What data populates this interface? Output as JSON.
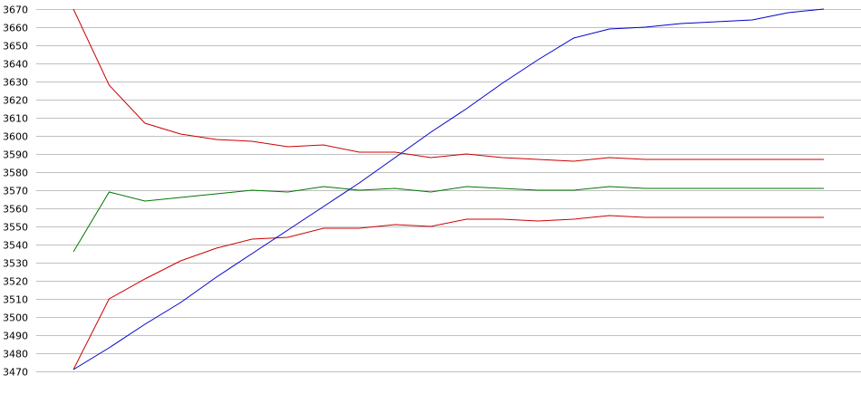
{
  "chart_data": {
    "type": "line",
    "title": "",
    "xlabel": "",
    "ylabel": "",
    "ylim": [
      3470,
      3670
    ],
    "yticks": [
      3670,
      3660,
      3650,
      3640,
      3630,
      3620,
      3610,
      3600,
      3590,
      3580,
      3570,
      3560,
      3550,
      3540,
      3530,
      3520,
      3510,
      3500,
      3490,
      3480,
      3470
    ],
    "grid": true,
    "x": [
      1,
      2,
      3,
      4,
      5,
      6,
      7,
      8,
      9,
      10,
      11,
      12,
      13,
      14,
      15,
      16,
      17,
      18,
      19,
      20,
      21,
      22
    ],
    "series": [
      {
        "name": "upper-red",
        "color": "#cc0000",
        "values": [
          3670,
          3628,
          3607,
          3601,
          3598,
          3597,
          3594,
          3595,
          3591,
          3591,
          3588,
          3590,
          3588,
          3587,
          3586,
          3588,
          3587,
          3587,
          3587,
          3587,
          3587,
          3587
        ]
      },
      {
        "name": "green",
        "color": "#007700",
        "values": [
          3536,
          3569,
          3564,
          3566,
          3568,
          3570,
          3569,
          3572,
          3570,
          3571,
          3569,
          3572,
          3571,
          3570,
          3570,
          3572,
          3571,
          3571,
          3571,
          3571,
          3571,
          3571
        ]
      },
      {
        "name": "lower-red",
        "color": "#cc0000",
        "values": [
          3471,
          3510,
          3521,
          3531,
          3538,
          3543,
          3544,
          3549,
          3549,
          3551,
          3550,
          3554,
          3554,
          3553,
          3554,
          3556,
          3555,
          3555,
          3555,
          3555,
          3555,
          3555
        ]
      },
      {
        "name": "blue",
        "color": "#0000cc",
        "values": [
          3471,
          3483,
          3496,
          3508,
          3522,
          3535,
          3548,
          3561,
          3574,
          3588,
          3602,
          3615,
          3629,
          3642,
          3654,
          3659,
          3660,
          3662,
          3663,
          3664,
          3668,
          3670
        ]
      }
    ]
  }
}
